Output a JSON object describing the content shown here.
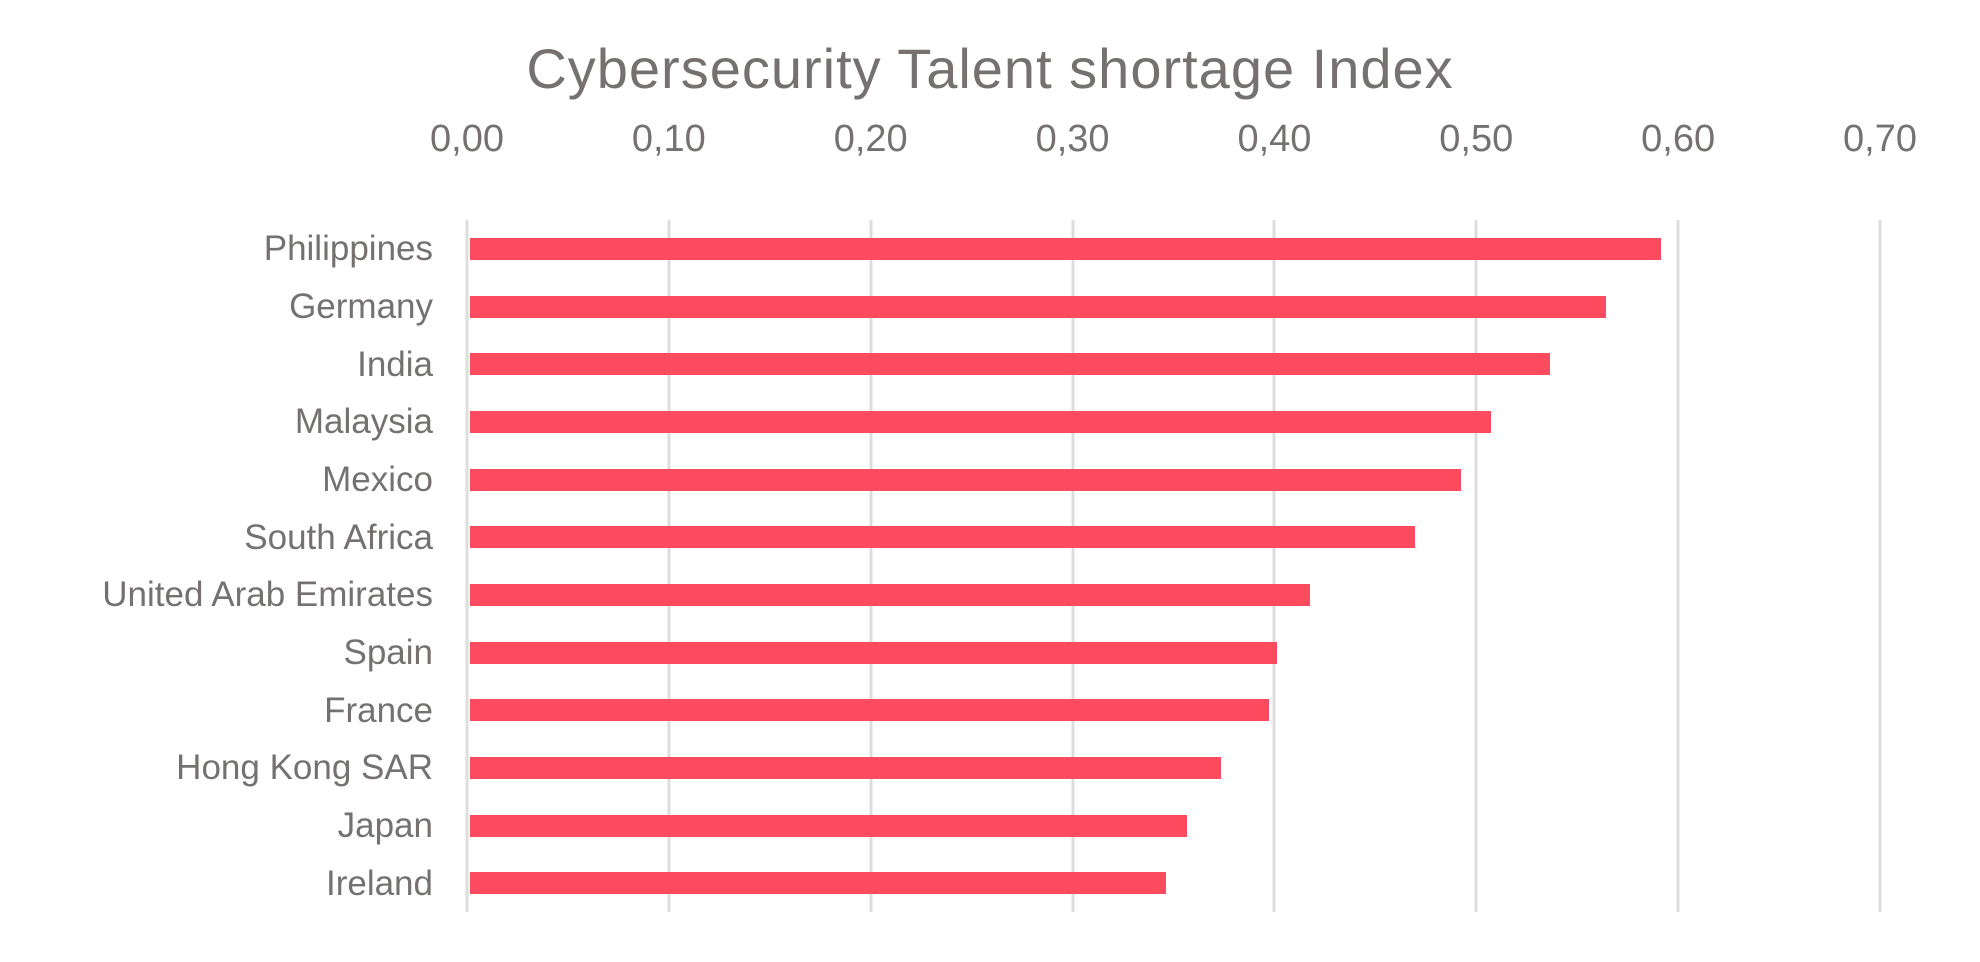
{
  "title": "Cybersecurity Talent shortage Index",
  "colors": {
    "bar": "#FC4A5F",
    "gridline": "#DDDDDD",
    "text": "#767171",
    "background": "#FFFFFF"
  },
  "chart_data": {
    "type": "bar",
    "orientation": "horizontal",
    "title": "Cybersecurity Talent shortage Index",
    "categories": [
      "Philippines",
      "Germany",
      "India",
      "Malaysia",
      "Mexico",
      "South Africa",
      "United Arab Emirates",
      "Spain",
      "France",
      "Hong Kong SAR",
      "Japan",
      "Ireland"
    ],
    "values": [
      0.59,
      0.563,
      0.535,
      0.506,
      0.491,
      0.468,
      0.416,
      0.4,
      0.396,
      0.372,
      0.355,
      0.345
    ],
    "xlabel": "",
    "ylabel": "",
    "xlim": [
      0,
      0.7
    ],
    "x_ticks": [
      0.0,
      0.1,
      0.2,
      0.3,
      0.4,
      0.5,
      0.6,
      0.7
    ],
    "x_tick_labels": [
      "0,00",
      "0,10",
      "0,20",
      "0,30",
      "0,40",
      "0,50",
      "0,60",
      "0,70"
    ],
    "decimal_separator": ",",
    "grid": true,
    "legend": false,
    "bar_color": "#FC4A5F"
  }
}
